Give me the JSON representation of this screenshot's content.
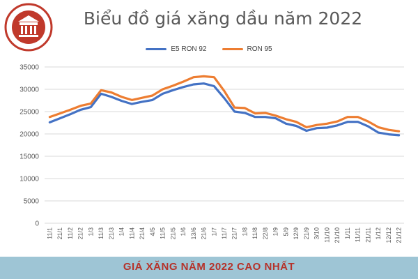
{
  "footer": {
    "caption": "GIÁ XĂNG NĂM 2022 CAO NHẤT"
  },
  "logo": {
    "text": "THƯ VIỆN PHÁP LUẬT"
  },
  "colors": {
    "e5": "#4472c4",
    "ron95": "#ed7d31",
    "grid": "#d9d9d9",
    "footer_bg": "#9ec5d5",
    "footer_text": "#b5322a",
    "logo_red": "#c0392b"
  },
  "chart_data": {
    "type": "line",
    "title": "Biểu đồ giá xăng dầu năm 2022",
    "xlabel": "",
    "ylabel": "",
    "ylim": [
      0,
      35000
    ],
    "yticks": [
      0,
      5000,
      10000,
      15000,
      20000,
      25000,
      30000,
      35000
    ],
    "grid": true,
    "legend_position": "top",
    "categories": [
      "11/1",
      "21/1",
      "11/2",
      "21/2",
      "1/3",
      "11/3",
      "21/3",
      "1/4",
      "11/4",
      "21/4",
      "4/5",
      "11/5",
      "21/5",
      "1/6",
      "13/6",
      "21/6",
      "1/7",
      "11/7",
      "21/7",
      "1/8",
      "11/8",
      "22/8",
      "1/9",
      "5/9",
      "12/9",
      "21/9",
      "3/10",
      "11/10",
      "21/10",
      "1/11",
      "11/11",
      "21/11",
      "1/12",
      "12/12",
      "21/12"
    ],
    "series": [
      {
        "name": "E5 RON 92",
        "color": "#4472c4",
        "values": [
          22600,
          23500,
          24400,
          25400,
          26000,
          29000,
          28300,
          27400,
          26700,
          27200,
          27600,
          29000,
          29800,
          30500,
          31100,
          31300,
          30700,
          28000,
          25000,
          24700,
          23800,
          23800,
          23500,
          22300,
          21800,
          20700,
          21300,
          21400,
          21900,
          22700,
          22700,
          21700,
          20300,
          19900,
          19700
        ]
      },
      {
        "name": "RON 95",
        "color": "#ed7d31",
        "values": [
          23800,
          24600,
          25400,
          26300,
          26800,
          29800,
          29300,
          28300,
          27600,
          28100,
          28600,
          30000,
          30800,
          31700,
          32700,
          32900,
          32700,
          29600,
          25900,
          25800,
          24600,
          24700,
          24100,
          23300,
          22700,
          21500,
          22000,
          22300,
          22800,
          23800,
          23800,
          22800,
          21500,
          20900,
          20600
        ]
      }
    ]
  }
}
